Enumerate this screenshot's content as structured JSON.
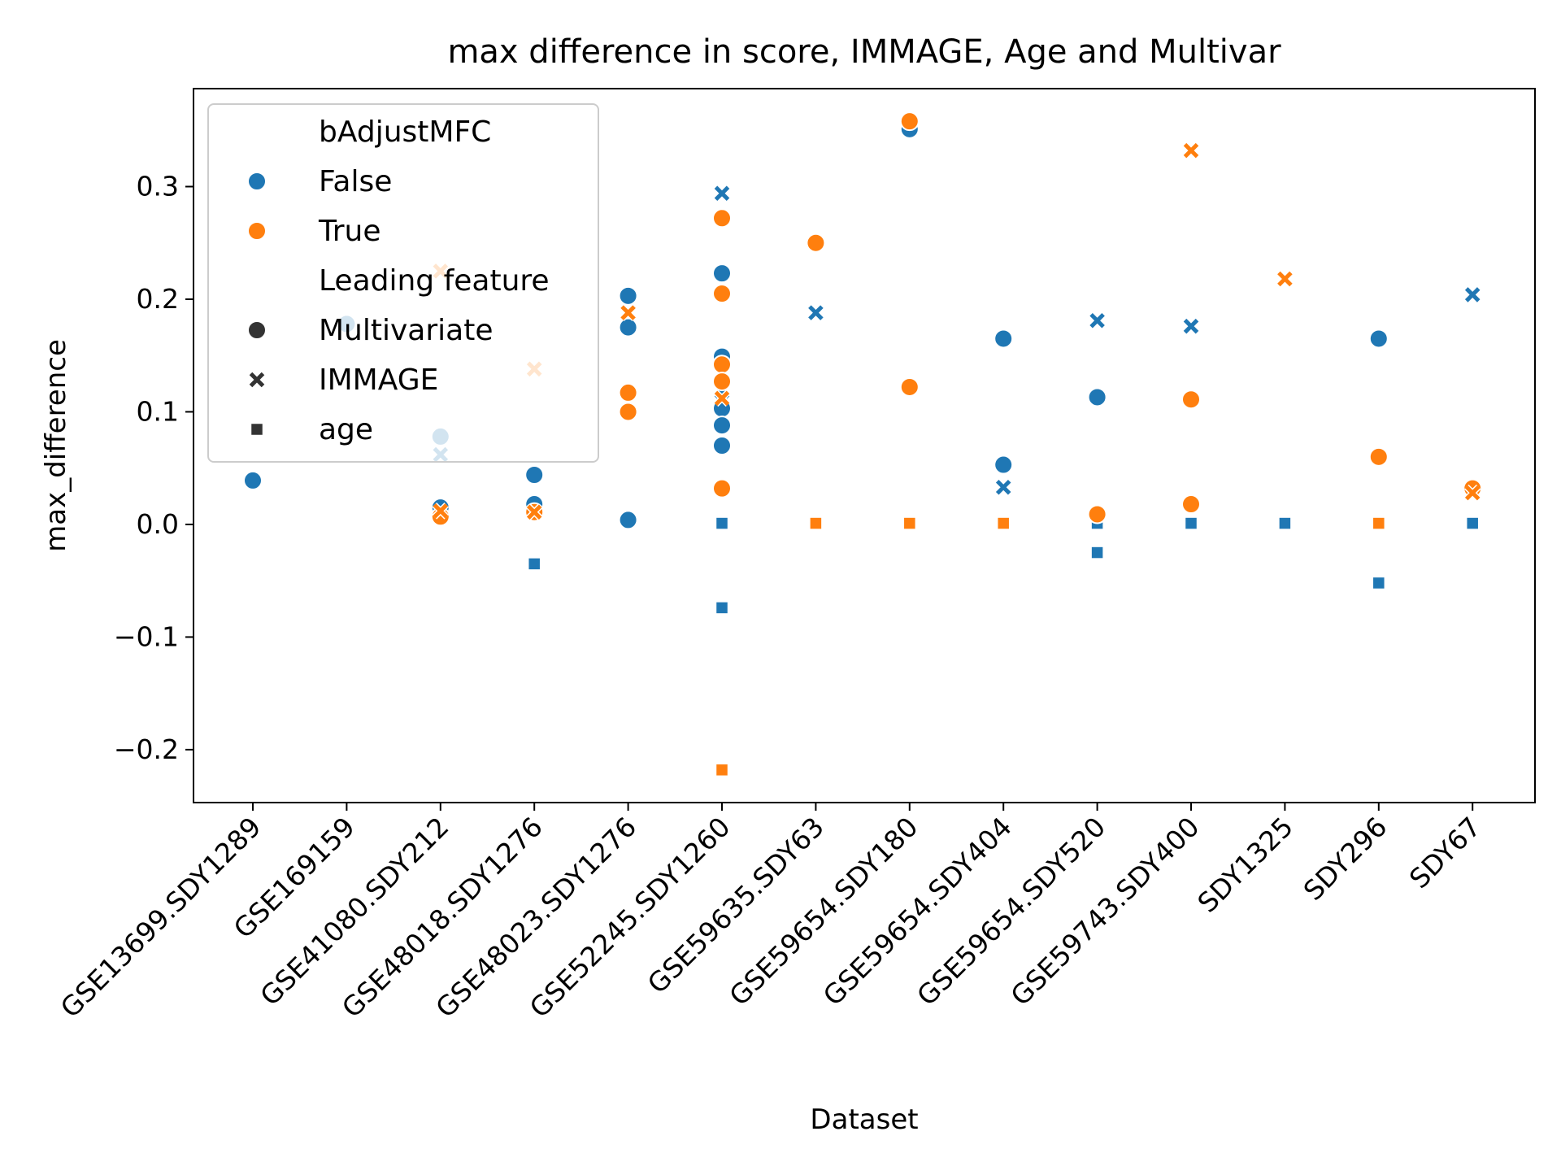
{
  "chart_data": {
    "type": "scatter",
    "title": "max difference in score, IMMAGE, Age and Multivar",
    "xlabel": "Dataset",
    "ylabel": "max_difference",
    "categories": [
      "GSE13699.SDY1289",
      "GSE169159",
      "GSE41080.SDY212",
      "GSE48018.SDY1276",
      "GSE48023.SDY1276",
      "GSE52245.SDY1260",
      "GSE59635.SDY63",
      "GSE59654.SDY180",
      "GSE59654.SDY404",
      "GSE59654.SDY520",
      "GSE59743.SDY400",
      "SDY1325",
      "SDY296",
      "SDY67"
    ],
    "ylim": [
      -0.247,
      0.387
    ],
    "yticks": [
      -0.2,
      -0.1,
      0.0,
      0.1,
      0.2,
      0.3
    ],
    "ytick_labels": [
      "−0.2",
      "−0.1",
      "0.0",
      "0.1",
      "0.2",
      "0.3"
    ],
    "grid": false,
    "legend_position": "top-left",
    "hue": {
      "title": "bAdjustMFC",
      "levels": [
        {
          "label": "False",
          "color": "#1f77b4"
        },
        {
          "label": "True",
          "color": "#ff7f0e"
        }
      ]
    },
    "style": {
      "title": "Leading feature",
      "levels": [
        {
          "label": "Multivariate",
          "marker": "circle"
        },
        {
          "label": "IMMAGE",
          "marker": "x"
        },
        {
          "label": "age",
          "marker": "square"
        }
      ]
    },
    "points": [
      {
        "x": "GSE13699.SDY1289",
        "y": 0.039,
        "hue": "False",
        "style": "Multivariate"
      },
      {
        "x": "GSE169159",
        "y": 0.178,
        "hue": "False",
        "style": "Multivariate"
      },
      {
        "x": "GSE41080.SDY212",
        "y": 0.078,
        "hue": "False",
        "style": "Multivariate"
      },
      {
        "x": "GSE41080.SDY212",
        "y": 0.062,
        "hue": "False",
        "style": "IMMAGE"
      },
      {
        "x": "GSE41080.SDY212",
        "y": 0.015,
        "hue": "False",
        "style": "Multivariate"
      },
      {
        "x": "GSE41080.SDY212",
        "y": 0.225,
        "hue": "True",
        "style": "IMMAGE"
      },
      {
        "x": "GSE41080.SDY212",
        "y": 0.007,
        "hue": "True",
        "style": "Multivariate"
      },
      {
        "x": "GSE41080.SDY212",
        "y": 0.012,
        "hue": "True",
        "style": "IMMAGE"
      },
      {
        "x": "GSE48018.SDY1276",
        "y": 0.044,
        "hue": "False",
        "style": "Multivariate"
      },
      {
        "x": "GSE48018.SDY1276",
        "y": 0.018,
        "hue": "False",
        "style": "Multivariate"
      },
      {
        "x": "GSE48018.SDY1276",
        "y": -0.035,
        "hue": "False",
        "style": "age"
      },
      {
        "x": "GSE48018.SDY1276",
        "y": 0.138,
        "hue": "True",
        "style": "IMMAGE"
      },
      {
        "x": "GSE48018.SDY1276",
        "y": 0.011,
        "hue": "True",
        "style": "Multivariate"
      },
      {
        "x": "GSE48018.SDY1276",
        "y": 0.011,
        "hue": "True",
        "style": "IMMAGE"
      },
      {
        "x": "GSE48023.SDY1276",
        "y": 0.203,
        "hue": "False",
        "style": "Multivariate"
      },
      {
        "x": "GSE48023.SDY1276",
        "y": 0.175,
        "hue": "False",
        "style": "Multivariate"
      },
      {
        "x": "GSE48023.SDY1276",
        "y": 0.004,
        "hue": "False",
        "style": "Multivariate"
      },
      {
        "x": "GSE48023.SDY1276",
        "y": 0.188,
        "hue": "True",
        "style": "IMMAGE"
      },
      {
        "x": "GSE48023.SDY1276",
        "y": 0.117,
        "hue": "True",
        "style": "Multivariate"
      },
      {
        "x": "GSE48023.SDY1276",
        "y": 0.1,
        "hue": "True",
        "style": "Multivariate"
      },
      {
        "x": "GSE52245.SDY1260",
        "y": 0.294,
        "hue": "False",
        "style": "IMMAGE"
      },
      {
        "x": "GSE52245.SDY1260",
        "y": 0.223,
        "hue": "False",
        "style": "Multivariate"
      },
      {
        "x": "GSE52245.SDY1260",
        "y": 0.149,
        "hue": "False",
        "style": "Multivariate"
      },
      {
        "x": "GSE52245.SDY1260",
        "y": 0.118,
        "hue": "False",
        "style": "IMMAGE"
      },
      {
        "x": "GSE52245.SDY1260",
        "y": 0.103,
        "hue": "False",
        "style": "Multivariate"
      },
      {
        "x": "GSE52245.SDY1260",
        "y": 0.088,
        "hue": "False",
        "style": "Multivariate"
      },
      {
        "x": "GSE52245.SDY1260",
        "y": 0.07,
        "hue": "False",
        "style": "Multivariate"
      },
      {
        "x": "GSE52245.SDY1260",
        "y": 0.001,
        "hue": "False",
        "style": "age"
      },
      {
        "x": "GSE52245.SDY1260",
        "y": -0.074,
        "hue": "False",
        "style": "age"
      },
      {
        "x": "GSE52245.SDY1260",
        "y": 0.272,
        "hue": "True",
        "style": "Multivariate"
      },
      {
        "x": "GSE52245.SDY1260",
        "y": 0.205,
        "hue": "True",
        "style": "Multivariate"
      },
      {
        "x": "GSE52245.SDY1260",
        "y": 0.142,
        "hue": "True",
        "style": "Multivariate"
      },
      {
        "x": "GSE52245.SDY1260",
        "y": 0.127,
        "hue": "True",
        "style": "Multivariate"
      },
      {
        "x": "GSE52245.SDY1260",
        "y": 0.112,
        "hue": "True",
        "style": "IMMAGE"
      },
      {
        "x": "GSE52245.SDY1260",
        "y": 0.032,
        "hue": "True",
        "style": "Multivariate"
      },
      {
        "x": "GSE52245.SDY1260",
        "y": -0.218,
        "hue": "True",
        "style": "age"
      },
      {
        "x": "GSE59635.SDY63",
        "y": 0.188,
        "hue": "False",
        "style": "IMMAGE"
      },
      {
        "x": "GSE59635.SDY63",
        "y": 0.25,
        "hue": "True",
        "style": "Multivariate"
      },
      {
        "x": "GSE59635.SDY63",
        "y": 0.001,
        "hue": "True",
        "style": "age"
      },
      {
        "x": "GSE59654.SDY180",
        "y": 0.351,
        "hue": "False",
        "style": "Multivariate"
      },
      {
        "x": "GSE59654.SDY180",
        "y": 0.358,
        "hue": "True",
        "style": "Multivariate"
      },
      {
        "x": "GSE59654.SDY180",
        "y": 0.122,
        "hue": "True",
        "style": "Multivariate"
      },
      {
        "x": "GSE59654.SDY180",
        "y": 0.001,
        "hue": "True",
        "style": "age"
      },
      {
        "x": "GSE59654.SDY404",
        "y": 0.165,
        "hue": "False",
        "style": "Multivariate"
      },
      {
        "x": "GSE59654.SDY404",
        "y": 0.053,
        "hue": "False",
        "style": "Multivariate"
      },
      {
        "x": "GSE59654.SDY404",
        "y": 0.033,
        "hue": "False",
        "style": "IMMAGE"
      },
      {
        "x": "GSE59654.SDY404",
        "y": 0.001,
        "hue": "True",
        "style": "age"
      },
      {
        "x": "GSE59654.SDY520",
        "y": 0.181,
        "hue": "False",
        "style": "IMMAGE"
      },
      {
        "x": "GSE59654.SDY520",
        "y": 0.113,
        "hue": "False",
        "style": "Multivariate"
      },
      {
        "x": "GSE59654.SDY520",
        "y": 0.001,
        "hue": "False",
        "style": "age"
      },
      {
        "x": "GSE59654.SDY520",
        "y": -0.025,
        "hue": "False",
        "style": "age"
      },
      {
        "x": "GSE59654.SDY520",
        "y": 0.009,
        "hue": "True",
        "style": "Multivariate"
      },
      {
        "x": "GSE59743.SDY400",
        "y": 0.176,
        "hue": "False",
        "style": "IMMAGE"
      },
      {
        "x": "GSE59743.SDY400",
        "y": 0.001,
        "hue": "False",
        "style": "age"
      },
      {
        "x": "GSE59743.SDY400",
        "y": 0.332,
        "hue": "True",
        "style": "IMMAGE"
      },
      {
        "x": "GSE59743.SDY400",
        "y": 0.111,
        "hue": "True",
        "style": "Multivariate"
      },
      {
        "x": "GSE59743.SDY400",
        "y": 0.018,
        "hue": "True",
        "style": "Multivariate"
      },
      {
        "x": "SDY1325",
        "y": 0.001,
        "hue": "False",
        "style": "age"
      },
      {
        "x": "SDY1325",
        "y": 0.218,
        "hue": "True",
        "style": "IMMAGE"
      },
      {
        "x": "SDY296",
        "y": 0.165,
        "hue": "False",
        "style": "Multivariate"
      },
      {
        "x": "SDY296",
        "y": -0.052,
        "hue": "False",
        "style": "age"
      },
      {
        "x": "SDY296",
        "y": 0.06,
        "hue": "True",
        "style": "Multivariate"
      },
      {
        "x": "SDY296",
        "y": 0.001,
        "hue": "True",
        "style": "age"
      },
      {
        "x": "SDY67",
        "y": 0.204,
        "hue": "False",
        "style": "IMMAGE"
      },
      {
        "x": "SDY67",
        "y": 0.001,
        "hue": "False",
        "style": "age"
      },
      {
        "x": "SDY67",
        "y": 0.032,
        "hue": "True",
        "style": "Multivariate"
      },
      {
        "x": "SDY67",
        "y": 0.028,
        "hue": "True",
        "style": "IMMAGE"
      }
    ]
  }
}
